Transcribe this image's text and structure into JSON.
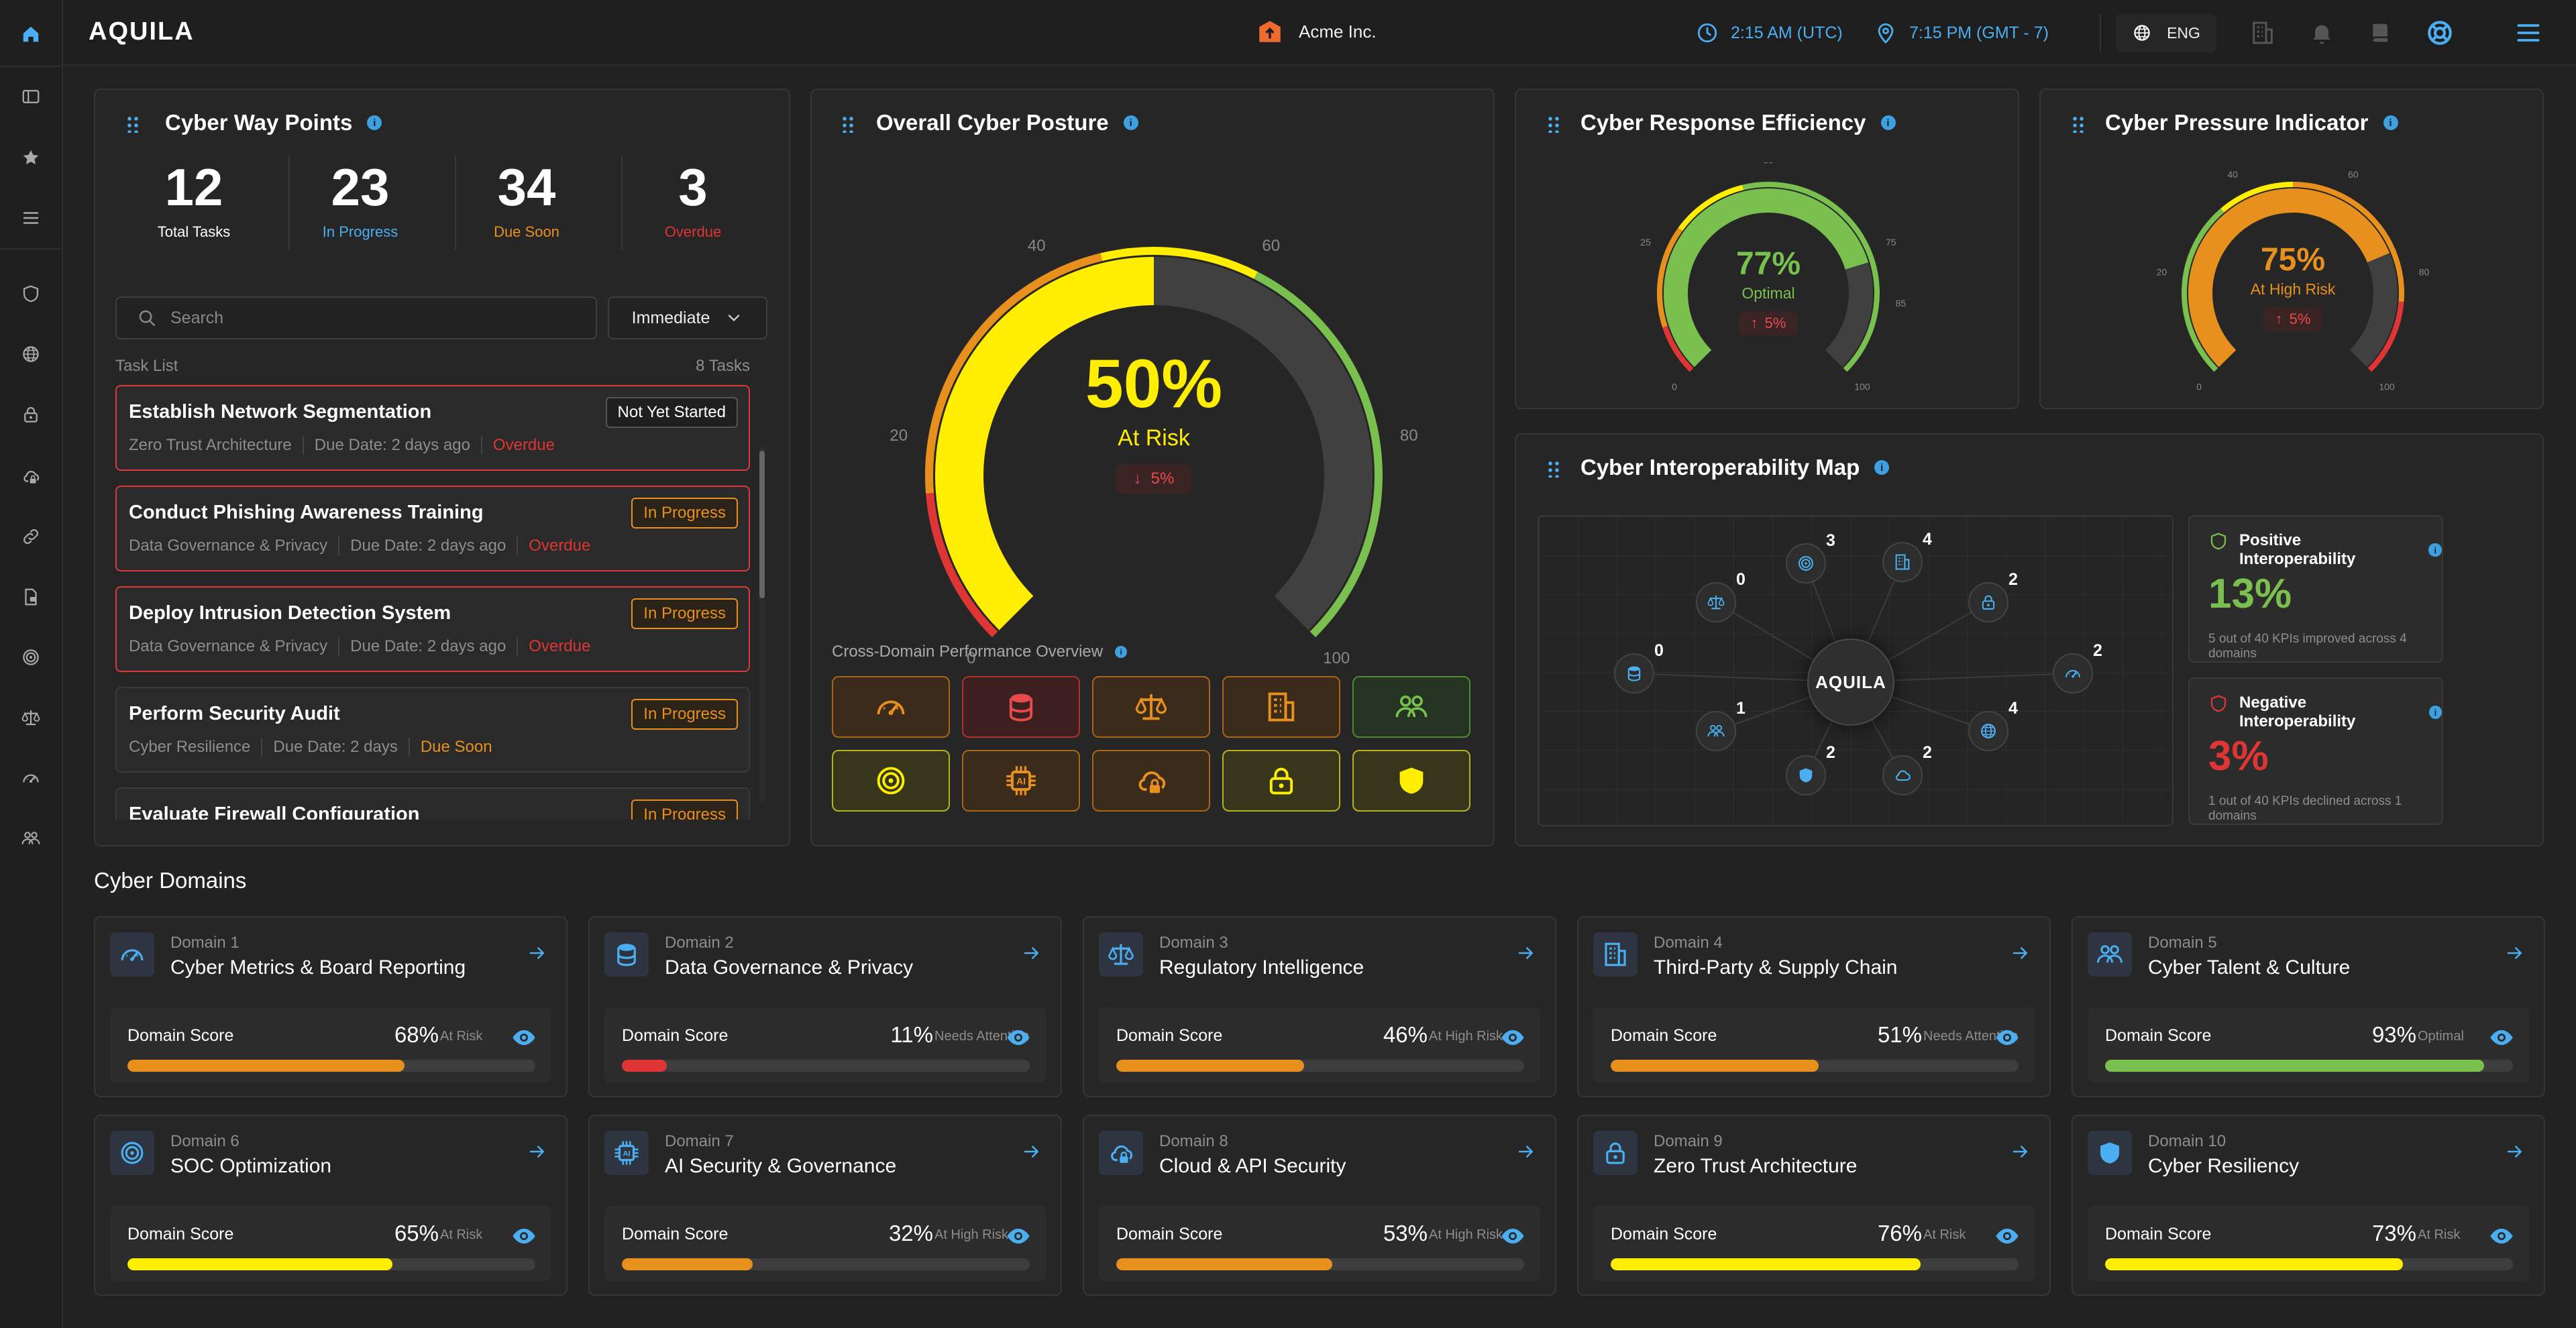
{
  "colors": {
    "accent": "#4aaef0",
    "red": "#e03535",
    "orange": "#e8901e",
    "yellow": "#ffee00",
    "green": "#79c04f",
    "gray": "#404040"
  },
  "header": {
    "logo": "AQUILA",
    "org": "Acme Inc.",
    "utc_time": "2:15 AM (UTC)",
    "local_time": "7:15 PM (GMT - 7)",
    "language": "ENG"
  },
  "waypoints": {
    "title": "Cyber Way Points",
    "stats": [
      {
        "value": "12",
        "label": "Total Tasks"
      },
      {
        "value": "23",
        "label": "In Progress"
      },
      {
        "value": "34",
        "label": "Due Soon"
      },
      {
        "value": "3",
        "label": "Overdue"
      }
    ],
    "search_placeholder": "Search",
    "filter": "Immediate",
    "list_label": "Task List",
    "list_count": "8 Tasks",
    "tasks": [
      {
        "title": "Establish Network Segmentation",
        "domain": "Zero Trust Architecture",
        "due": "Due Date: 2 days ago",
        "state": "Overdue",
        "status": "Not Yet Started"
      },
      {
        "title": "Conduct Phishing Awareness Training",
        "domain": "Data Governance & Privacy",
        "due": "Due Date: 2 days ago",
        "state": "Overdue",
        "status": "In Progress"
      },
      {
        "title": "Deploy Intrusion Detection System",
        "domain": "Data Governance & Privacy",
        "due": "Due Date: 2 days ago",
        "state": "Overdue",
        "status": "In Progress"
      },
      {
        "title": "Perform Security Audit",
        "domain": "Cyber Resilience",
        "due": "Due Date: 2 days",
        "state": "Due Soon",
        "status": "In Progress"
      },
      {
        "title": "Evaluate Firewall Configuration",
        "domain": "",
        "due": "",
        "state": "",
        "status": "In Progress"
      }
    ]
  },
  "posture": {
    "title": "Overall Cyber Posture",
    "value": 50,
    "value_text": "50%",
    "status": "At Risk",
    "delta": "5%",
    "delta_dir": "down",
    "ticks": [
      "0",
      "20",
      "40",
      "60",
      "80",
      "100"
    ],
    "overview_title": "Cross-Domain Performance Overview",
    "tiles": [
      {
        "icon": "gauge-icon",
        "status": "orange"
      },
      {
        "icon": "database-icon",
        "status": "red"
      },
      {
        "icon": "scales-icon",
        "status": "orange"
      },
      {
        "icon": "building-icon",
        "status": "orange"
      },
      {
        "icon": "people-icon",
        "status": "green"
      },
      {
        "icon": "target-icon",
        "status": "yellow"
      },
      {
        "icon": "ai-chip-icon",
        "status": "orange"
      },
      {
        "icon": "cloud-lock-icon",
        "status": "orange"
      },
      {
        "icon": "lock-icon",
        "status": "yellow"
      },
      {
        "icon": "shield-icon",
        "status": "yellow"
      }
    ]
  },
  "efficiency": {
    "title": "Cyber Response Efficiency",
    "value": 77,
    "value_text": "77%",
    "status": "Optimal",
    "delta": "5%",
    "delta_dir": "up",
    "ticks": [
      "0",
      "25",
      "50",
      "75",
      "85",
      "100"
    ]
  },
  "pressure": {
    "title": "Cyber Pressure Indicator",
    "value": 75,
    "value_text": "75%",
    "status": "At High Risk",
    "delta": "5%",
    "delta_dir": "up",
    "ticks": [
      "0",
      "20",
      "40",
      "60",
      "80",
      "100"
    ]
  },
  "interop": {
    "title": "Cyber Interoperability Map",
    "center": "AQUILA",
    "nodes": [
      {
        "icon": "target-icon",
        "count": "3"
      },
      {
        "icon": "building-icon",
        "count": "4"
      },
      {
        "icon": "lock-icon",
        "count": "2"
      },
      {
        "icon": "gauge-icon",
        "count": "2"
      },
      {
        "icon": "globe-icon",
        "count": "4"
      },
      {
        "icon": "cloud-icon",
        "count": "2"
      },
      {
        "icon": "shield-icon",
        "count": "2"
      },
      {
        "icon": "people-icon",
        "count": "1"
      },
      {
        "icon": "database-icon",
        "count": "0"
      },
      {
        "icon": "scales-icon",
        "count": "0"
      }
    ],
    "positive": {
      "title": "Positive Interoperability",
      "value": "13%",
      "desc": "5 out of 40 KPIs improved across 4 domains"
    },
    "negative": {
      "title": "Negative Interoperability",
      "value": "3%",
      "desc": "1 out of 40 KPIs declined across 1 domains"
    }
  },
  "domains": {
    "title": "Cyber Domains",
    "score_label": "Domain Score",
    "items": [
      {
        "num": "Domain 1",
        "name": "Cyber Metrics & Board Reporting",
        "score": 68,
        "score_text": "68%",
        "status": "At Risk",
        "color": "orange",
        "icon": "gauge-icon"
      },
      {
        "num": "Domain 2",
        "name": "Data Governance & Privacy",
        "score": 11,
        "score_text": "11%",
        "status": "Needs Attention",
        "color": "red",
        "icon": "database-icon"
      },
      {
        "num": "Domain 3",
        "name": "Regulatory Intelligence",
        "score": 46,
        "score_text": "46%",
        "status": "At High Risk",
        "color": "orange",
        "icon": "scales-icon"
      },
      {
        "num": "Domain 4",
        "name": "Third-Party & Supply Chain",
        "score": 51,
        "score_text": "51%",
        "status": "Needs Attention",
        "color": "orange",
        "icon": "building-icon"
      },
      {
        "num": "Domain 5",
        "name": "Cyber Talent & Culture",
        "score": 93,
        "score_text": "93%",
        "status": "Optimal",
        "color": "green",
        "icon": "people-icon"
      },
      {
        "num": "Domain 6",
        "name": "SOC Optimization",
        "score": 65,
        "score_text": "65%",
        "status": "At Risk",
        "color": "yellow",
        "icon": "target-icon"
      },
      {
        "num": "Domain 7",
        "name": "AI Security & Governance",
        "score": 32,
        "score_text": "32%",
        "status": "At High Risk",
        "color": "orange",
        "icon": "ai-chip-icon"
      },
      {
        "num": "Domain 8",
        "name": "Cloud & API Security",
        "score": 53,
        "score_text": "53%",
        "status": "At High Risk",
        "color": "orange",
        "icon": "cloud-lock-icon"
      },
      {
        "num": "Domain 9",
        "name": "Zero Trust Architecture",
        "score": 76,
        "score_text": "76%",
        "status": "At Risk",
        "color": "yellow",
        "icon": "lock-icon"
      },
      {
        "num": "Domain 10",
        "name": "Cyber Resiliency",
        "score": 73,
        "score_text": "73%",
        "status": "At Risk",
        "color": "yellow",
        "icon": "shield-icon"
      }
    ]
  }
}
